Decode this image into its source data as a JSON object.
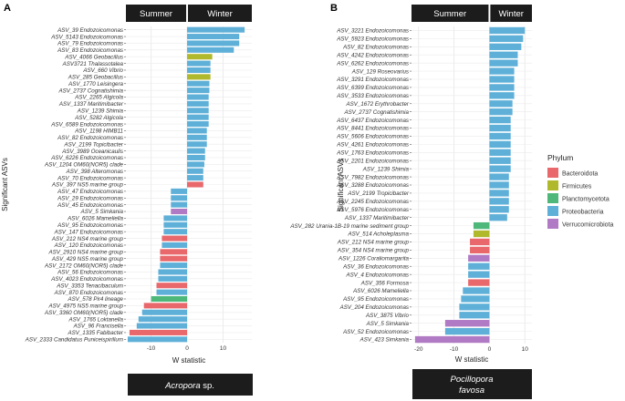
{
  "colors": {
    "Bacteroidota": "#e8686c",
    "Firmicutes": "#b0b82c",
    "Planctomycetota": "#4db87a",
    "Proteobacteria": "#5fb0d8",
    "Verrucomicrobiota": "#b07ac4",
    "strip": "#1c1c1c",
    "grid": "#ebebeb"
  },
  "legend": {
    "title": "Phylum",
    "entries": [
      "Bacteroidota",
      "Firmicutes",
      "Planctomycetota",
      "Proteobacteria",
      "Verrucomicrobiota"
    ]
  },
  "chart_data": [
    {
      "panel": "A",
      "type": "bar",
      "orientation": "horizontal",
      "facets": [
        "Summer",
        "Winter"
      ],
      "xlabel": "W statistic",
      "ylabel": "Significant ASVs",
      "caption_main": "Acropora",
      "caption_rest": " sp.",
      "xlim": [
        -17,
        18
      ],
      "xticks": [
        -10,
        0,
        10
      ],
      "categories": [
        "ASV_39 Endozoicomonas",
        "ASV_5143 Endozoicomonas",
        "ASV_79 Endozoicomonas",
        "ASV_83 Endozoicomonas",
        "ASV_4066 Geobacillus",
        "ASV3721 Thalassotalea",
        "ASV_660 Vibrio",
        "ASV_285 Geobacillus",
        "ASV_1770 Leisingera",
        "ASV_2737 Cognatishimia",
        "ASV_2265 Algicola",
        "ASV_1337 Maritimibacter",
        "ASV_1239 Shimia",
        "ASV_5282 Algicola",
        "ASV_6589 Endozoicomonas",
        "ASV_1198 HIMB11",
        "ASV_82 Endozoicomonas",
        "ASV_2199 Topicibacter",
        "ASV_3989 Oceanicaulis",
        "ASV_6226 Endozoicomonas",
        "ASV_1204 OM60(NOR5) clade",
        "ASV_398 Alteromonas",
        "ASV_70 Endozoicomonas",
        "ASV_397 NS5 marine group",
        "ASV_47 Endozoicomonas",
        "ASV_29 Endozoicomonas",
        "ASV_45 Endozoicomonas",
        "ASV_5 Simkania",
        "ASV_6026 Mameliella",
        "ASV_95 Endozoicomonas",
        "ASV_147 Endozoicomonas",
        "ASV_212 NS4 marine group",
        "ASV_120 Endozoicomonas",
        "ASV_2910 NS4 marine group",
        "ASV_429 NS5 marine group",
        "ASV_2172 OM60(NOR5) clade",
        "ASV_56 Endozoicomonas",
        "ASV_4023 Endozoicomonas",
        "ASV_3353 Tenacibaculum",
        "ASV_870 Endozoicomonas",
        "ASV_578 Pir4 lineage",
        "ASV_4975 NS5 marine group",
        "ASV_3360 OM60(NOR5) clade",
        "ASV_1765 Loktanella",
        "ASV_96 Francisella",
        "ASV_1335 Fabibacter",
        "ASV_2333 Candidatus Puniceispirillum"
      ],
      "values": [
        16,
        14.5,
        14.5,
        13,
        7,
        6.5,
        6.5,
        6.5,
        6.2,
        6.2,
        6,
        6,
        6,
        6,
        6,
        5.5,
        5.5,
        5.5,
        5,
        5,
        4.8,
        4.5,
        4.5,
        4.5,
        -4.5,
        -4.5,
        -4.5,
        -4.5,
        -6.5,
        -6.5,
        -6.5,
        -7,
        -7,
        -7.5,
        -7.5,
        -7.5,
        -8,
        -8,
        -8.5,
        -8.5,
        -10,
        -12,
        -12.5,
        -13.5,
        -14,
        -16,
        -16.5
      ],
      "phylum": [
        "Proteobacteria",
        "Proteobacteria",
        "Proteobacteria",
        "Proteobacteria",
        "Firmicutes",
        "Proteobacteria",
        "Proteobacteria",
        "Firmicutes",
        "Proteobacteria",
        "Proteobacteria",
        "Proteobacteria",
        "Proteobacteria",
        "Proteobacteria",
        "Proteobacteria",
        "Proteobacteria",
        "Proteobacteria",
        "Proteobacteria",
        "Proteobacteria",
        "Proteobacteria",
        "Proteobacteria",
        "Proteobacteria",
        "Proteobacteria",
        "Proteobacteria",
        "Bacteroidota",
        "Proteobacteria",
        "Proteobacteria",
        "Proteobacteria",
        "Verrucomicrobiota",
        "Proteobacteria",
        "Proteobacteria",
        "Proteobacteria",
        "Bacteroidota",
        "Proteobacteria",
        "Bacteroidota",
        "Bacteroidota",
        "Proteobacteria",
        "Proteobacteria",
        "Proteobacteria",
        "Bacteroidota",
        "Proteobacteria",
        "Planctomycetota",
        "Bacteroidota",
        "Proteobacteria",
        "Proteobacteria",
        "Proteobacteria",
        "Bacteroidota",
        "Proteobacteria"
      ]
    },
    {
      "panel": "B",
      "type": "bar",
      "orientation": "horizontal",
      "facets": [
        "Summer",
        "Winter"
      ],
      "xlabel": "W statistic",
      "ylabel": "Significant ASVs",
      "caption_main": "Pocillopora",
      "caption_second": "favosa",
      "xlim": [
        -22,
        12
      ],
      "xticks": [
        -20,
        -10,
        0,
        10
      ],
      "categories": [
        "ASV_3221 Endozoicomonas",
        "ASV_5923 Endozoicomonas",
        "ASV_82 Endozoicomonas",
        "ASV_4242 Endozoicomonas",
        "ASV_6262 Endozoicomonas",
        "ASV_129 Roseovarius",
        "ASV_3291 Endozoicomonas",
        "ASV_6399 Endozoicomonas",
        "ASV_3533 Endozoicomonas",
        "ASV_1672 Erythrobacter",
        "ASV_2737 Cognatishimia",
        "ASV_6437 Endozoicomonas",
        "ASV_8441 Endozoicomonas",
        "ASV_5606 Endozoicomonas",
        "ASV_4261 Endozoicomonas",
        "ASV_1763 Endozoicomonas",
        "ASV_2201 Endozoicomonas",
        "ASV_1239 Shimia",
        "ASV_7982 Endozoicomonas",
        "ASV_3288 Endozoicomonas",
        "ASV_2199 Tropicibacter",
        "ASV_2245 Endozoicomonas",
        "ASV_5976 Endozoicomonas",
        "ASV_1337 Maritimibacter",
        "ASV_282 Urania-1B-19 marine sediment group",
        "ASV_514 Acholeplasma",
        "ASV_212 NS4 marine group",
        "ASV_354 NS4 marine group",
        "ASV_1226 Coraliomargarita",
        "ASV_36 Endozoicomonas",
        "ASV_4 Endozoicomonas",
        "ASV_356 Formosa",
        "ASV_6026 Mameliella",
        "ASV_95 Endozoicomonas",
        "ASV_204 Endozoicomonas",
        "ASV_3875 Vibrio",
        "ASV_5 Simkania",
        "ASV_52 Endozoicomonas",
        "ASV_423 Simkania"
      ],
      "values": [
        10,
        9.5,
        9,
        8,
        8,
        7,
        7,
        7,
        7,
        6.5,
        6.5,
        6,
        6,
        6,
        6,
        6,
        6,
        6,
        5.5,
        5.5,
        5.5,
        5.5,
        5.5,
        5,
        -4.5,
        -4.5,
        -5.5,
        -5.5,
        -6,
        -6,
        -6,
        -6,
        -7.5,
        -8,
        -8.5,
        -8.5,
        -12.5,
        -12.5,
        -21
      ],
      "phylum": [
        "Proteobacteria",
        "Proteobacteria",
        "Proteobacteria",
        "Proteobacteria",
        "Proteobacteria",
        "Proteobacteria",
        "Proteobacteria",
        "Proteobacteria",
        "Proteobacteria",
        "Proteobacteria",
        "Proteobacteria",
        "Proteobacteria",
        "Proteobacteria",
        "Proteobacteria",
        "Proteobacteria",
        "Proteobacteria",
        "Proteobacteria",
        "Proteobacteria",
        "Proteobacteria",
        "Proteobacteria",
        "Proteobacteria",
        "Proteobacteria",
        "Proteobacteria",
        "Proteobacteria",
        "Planctomycetota",
        "Firmicutes",
        "Bacteroidota",
        "Bacteroidota",
        "Verrucomicrobiota",
        "Proteobacteria",
        "Proteobacteria",
        "Bacteroidota",
        "Proteobacteria",
        "Proteobacteria",
        "Proteobacteria",
        "Proteobacteria",
        "Verrucomicrobiota",
        "Proteobacteria",
        "Verrucomicrobiota"
      ]
    }
  ]
}
